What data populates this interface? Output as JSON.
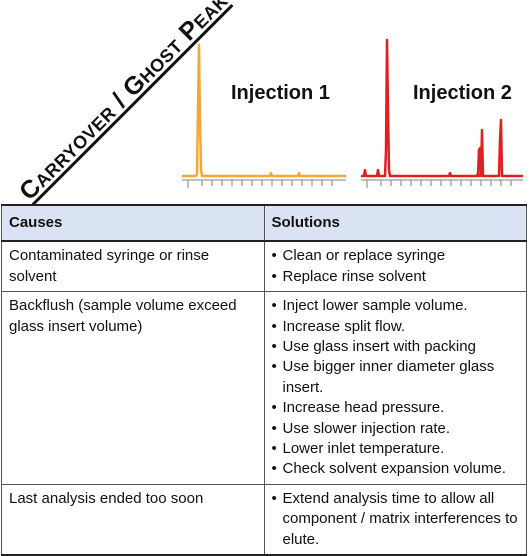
{
  "title": "Carryover / Ghost Peak",
  "injections": [
    {
      "label": "Injection 1",
      "color": "#f4a736"
    },
    {
      "label": "Injection 2",
      "color": "#e02020"
    }
  ],
  "table": {
    "headers": {
      "causes": "Causes",
      "solutions": "Solutions"
    },
    "rows": [
      {
        "cause": "Contaminated syringe or rinse solvent",
        "solutions": [
          "Clean or replace syringe",
          "Replace rinse solvent"
        ]
      },
      {
        "cause": "Backflush (sample volume exceed glass insert volume)",
        "solutions": [
          "Inject lower sample volume.",
          "Increase split flow.",
          "Use glass insert with packing",
          "Use bigger inner diameter glass insert.",
          "Increase head pressure.",
          "Use slower injection rate.",
          "Lower inlet temperature.",
          "Check solvent expansion volume."
        ]
      },
      {
        "cause": "Last analysis ended too soon",
        "solutions": [
          "Extend analysis time to allow all component / matrix interferences to elute."
        ]
      }
    ]
  },
  "colors": {
    "header_fill": "#dae3f3",
    "axis": "#9a9a9a"
  }
}
